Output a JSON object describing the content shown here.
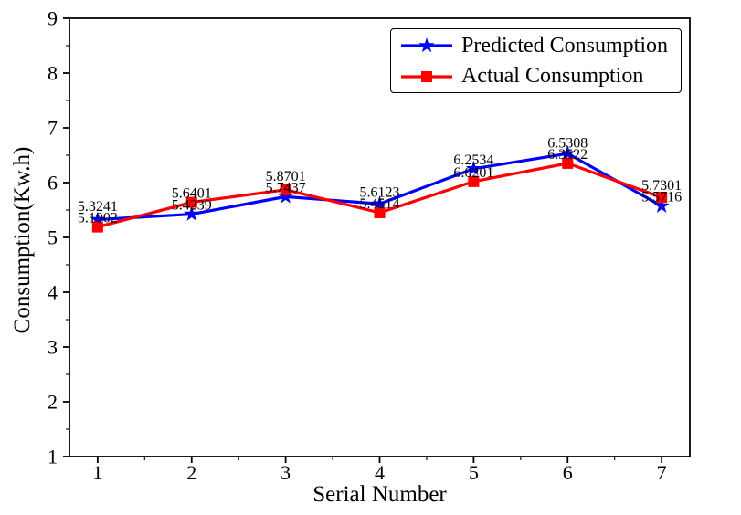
{
  "chart_data": {
    "type": "line",
    "title": "",
    "xlabel": "Serial Number",
    "ylabel": "Consumption(Kw.h)",
    "x": [
      1,
      2,
      3,
      4,
      5,
      6,
      7
    ],
    "xticks": [
      1,
      2,
      3,
      4,
      5,
      6,
      7
    ],
    "yticks": [
      1,
      2,
      3,
      4,
      5,
      6,
      7,
      8,
      9
    ],
    "xlim": [
      0.7,
      7.3
    ],
    "ylim": [
      1,
      9
    ],
    "minor_tick_step": 0.5,
    "grid": false,
    "legend_position": "upper right",
    "point_labels": true,
    "label_decimals": 4,
    "series": [
      {
        "name": "Predicted Consumption",
        "color": "#0000ff",
        "marker": "star",
        "values": [
          5.3241,
          5.4239,
          5.7437,
          5.6123,
          6.2534,
          6.5308,
          5.5716
        ]
      },
      {
        "name": "Actual Consumption",
        "color": "#ff0000",
        "marker": "square",
        "values": [
          5.1902,
          5.6401,
          5.8701,
          5.4514,
          6.0201,
          6.3522,
          5.7301
        ]
      }
    ]
  }
}
